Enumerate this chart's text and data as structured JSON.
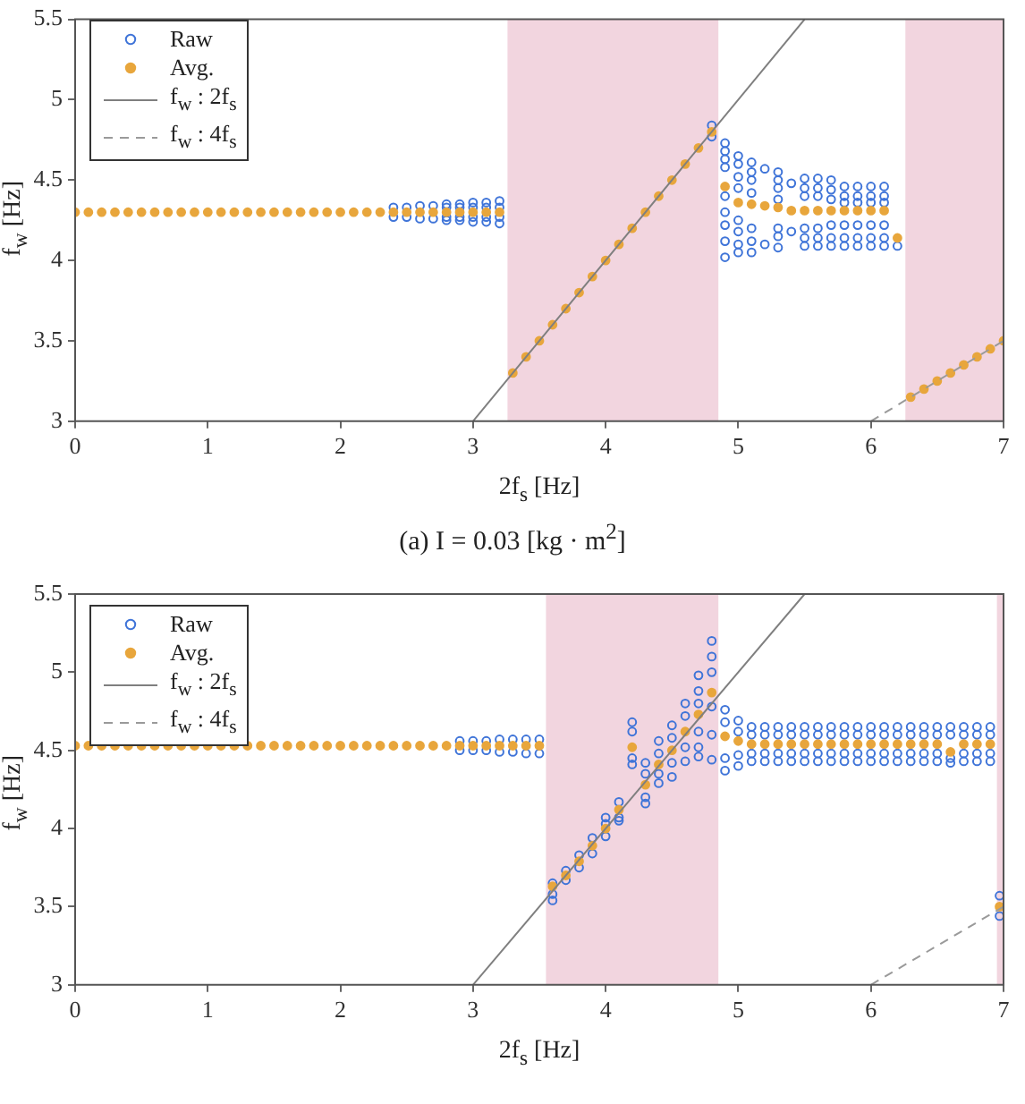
{
  "chart_data": [
    {
      "type": "scatter",
      "xlabel": "2f$_{s}$ [Hz]",
      "ylabel": "f$_{w}$ [Hz]",
      "xlim": [
        0,
        7
      ],
      "ylim": [
        3,
        5.5
      ],
      "xticks": [
        0,
        1,
        2,
        3,
        4,
        5,
        6,
        7
      ],
      "yticks": [
        3,
        3.5,
        4,
        4.5,
        5,
        5.5
      ],
      "legend": "top left",
      "annotations": [
        "(a) I = 0.03 [kg · m$^{2}$]"
      ],
      "bands": [
        {
          "axis": "x",
          "from": 3.26,
          "to": 4.85,
          "color": "#f2d5df"
        },
        {
          "axis": "x",
          "from": 6.26,
          "to": 7,
          "color": "#f2d5df"
        }
      ],
      "series": [
        {
          "name": "Raw",
          "type": "scatter",
          "marker": "circle",
          "color": "#3f74d8",
          "x": [
            2.4,
            2.4,
            2.5,
            2.5,
            2.6,
            2.6,
            2.7,
            2.7,
            2.8,
            2.8,
            2.8,
            2.8,
            2.9,
            2.9,
            2.9,
            2.9,
            3.0,
            3.0,
            3.0,
            3.0,
            3.1,
            3.1,
            3.1,
            3.1,
            3.2,
            3.2,
            3.2,
            3.2,
            4.8,
            4.8,
            4.9,
            4.9,
            4.9,
            4.9,
            4.9,
            4.9,
            4.9,
            4.9,
            4.9,
            5.0,
            5.0,
            5.0,
            5.0,
            5.0,
            5.0,
            5.0,
            5.0,
            5.1,
            5.1,
            5.1,
            5.1,
            5.1,
            5.1,
            5.1,
            5.2,
            5.2,
            5.3,
            5.3,
            5.3,
            5.3,
            5.3,
            5.3,
            5.3,
            5.4,
            5.4,
            5.5,
            5.5,
            5.5,
            5.5,
            5.5,
            5.5,
            5.6,
            5.6,
            5.6,
            5.6,
            5.6,
            5.6,
            5.7,
            5.7,
            5.7,
            5.7,
            5.7,
            5.7,
            5.8,
            5.8,
            5.8,
            5.8,
            5.8,
            5.8,
            5.9,
            5.9,
            5.9,
            5.9,
            5.9,
            5.9,
            6.0,
            6.0,
            6.0,
            6.0,
            6.0,
            6.0,
            6.1,
            6.1,
            6.1,
            6.1,
            6.1,
            6.1,
            6.2
          ],
          "values": [
            4.33,
            4.27,
            4.33,
            4.27,
            4.34,
            4.26,
            4.34,
            4.26,
            4.35,
            4.33,
            4.27,
            4.25,
            4.35,
            4.33,
            4.27,
            4.25,
            4.36,
            4.33,
            4.27,
            4.24,
            4.36,
            4.33,
            4.27,
            4.24,
            4.37,
            4.33,
            4.27,
            4.23,
            4.84,
            4.77,
            4.73,
            4.68,
            4.63,
            4.58,
            4.4,
            4.3,
            4.22,
            4.12,
            4.02,
            4.65,
            4.6,
            4.52,
            4.45,
            4.25,
            4.18,
            4.1,
            4.05,
            4.61,
            4.55,
            4.5,
            4.42,
            4.2,
            4.12,
            4.05,
            4.57,
            4.1,
            4.55,
            4.5,
            4.45,
            4.38,
            4.2,
            4.15,
            4.08,
            4.48,
            4.18,
            4.51,
            4.45,
            4.4,
            4.2,
            4.14,
            4.09,
            4.51,
            4.45,
            4.4,
            4.2,
            4.14,
            4.09,
            4.5,
            4.44,
            4.38,
            4.22,
            4.14,
            4.09,
            4.46,
            4.4,
            4.36,
            4.22,
            4.14,
            4.09,
            4.46,
            4.4,
            4.36,
            4.22,
            4.14,
            4.09,
            4.46,
            4.4,
            4.36,
            4.22,
            4.14,
            4.09,
            4.46,
            4.4,
            4.36,
            4.22,
            4.14,
            4.09,
            4.09
          ]
        },
        {
          "name": "Avg.",
          "type": "scatter",
          "marker": "circle",
          "color": "#e8a63c",
          "x": [
            0,
            0.1,
            0.2,
            0.3,
            0.4,
            0.5,
            0.6,
            0.7,
            0.8,
            0.9,
            1.0,
            1.1,
            1.2,
            1.3,
            1.4,
            1.5,
            1.6,
            1.7,
            1.8,
            1.9,
            2.0,
            2.1,
            2.2,
            2.3,
            2.4,
            2.5,
            2.6,
            2.7,
            2.8,
            2.9,
            3.0,
            3.1,
            3.2,
            3.3,
            3.4,
            3.5,
            3.6,
            3.7,
            3.8,
            3.9,
            4.0,
            4.1,
            4.2,
            4.3,
            4.4,
            4.5,
            4.6,
            4.7,
            4.8,
            4.9,
            5.0,
            5.1,
            5.2,
            5.3,
            5.4,
            5.5,
            5.6,
            5.7,
            5.8,
            5.9,
            6.0,
            6.1,
            6.2,
            6.3,
            6.4,
            6.5,
            6.6,
            6.7,
            6.8,
            6.9,
            7.0
          ],
          "values": [
            4.3,
            4.3,
            4.3,
            4.3,
            4.3,
            4.3,
            4.3,
            4.3,
            4.3,
            4.3,
            4.3,
            4.3,
            4.3,
            4.3,
            4.3,
            4.3,
            4.3,
            4.3,
            4.3,
            4.3,
            4.3,
            4.3,
            4.3,
            4.3,
            4.3,
            4.3,
            4.3,
            4.3,
            4.3,
            4.3,
            4.3,
            4.3,
            4.3,
            3.3,
            3.4,
            3.5,
            3.6,
            3.7,
            3.8,
            3.9,
            4.0,
            4.1,
            4.2,
            4.3,
            4.4,
            4.5,
            4.6,
            4.7,
            4.8,
            4.46,
            4.36,
            4.35,
            4.34,
            4.33,
            4.31,
            4.31,
            4.31,
            4.31,
            4.31,
            4.31,
            4.31,
            4.31,
            4.14,
            3.15,
            3.2,
            3.25,
            3.3,
            3.35,
            3.4,
            3.45,
            3.5
          ]
        },
        {
          "name": "f$_{w}$ : 2f$_{s}$",
          "type": "line",
          "marker": "none",
          "line_style": "solid",
          "color": "#7f7f7f",
          "x": [
            3,
            5.5
          ],
          "values": [
            3,
            5.5
          ]
        },
        {
          "name": "f$_{w}$ : 4f$_{s}$",
          "type": "line",
          "marker": "none",
          "line_style": "dashed",
          "color": "#9a9a9a",
          "x": [
            6,
            7
          ],
          "values": [
            3,
            3.5
          ]
        }
      ]
    },
    {
      "type": "scatter",
      "xlabel": "2f$_{s}$ [Hz]",
      "ylabel": "f$_{w}$ [Hz]",
      "xlim": [
        0,
        7
      ],
      "ylim": [
        3,
        5.5
      ],
      "xticks": [
        0,
        1,
        2,
        3,
        4,
        5,
        6,
        7
      ],
      "yticks": [
        3,
        3.5,
        4,
        4.5,
        5,
        5.5
      ],
      "legend": "top left",
      "bands": [
        {
          "axis": "x",
          "from": 3.55,
          "to": 4.85,
          "color": "#f2d5df"
        },
        {
          "axis": "x",
          "from": 6.95,
          "to": 7,
          "color": "#f2d5df"
        }
      ],
      "series": [
        {
          "name": "Raw",
          "type": "scatter",
          "marker": "circle",
          "color": "#3f74d8",
          "x": [
            2.9,
            2.9,
            3.0,
            3.0,
            3.1,
            3.1,
            3.2,
            3.2,
            3.3,
            3.3,
            3.4,
            3.4,
            3.5,
            3.5,
            3.6,
            3.6,
            3.6,
            3.7,
            3.7,
            3.8,
            3.8,
            3.9,
            3.9,
            4.0,
            4.0,
            4.0,
            4.1,
            4.1,
            4.1,
            4.2,
            4.2,
            4.2,
            4.2,
            4.3,
            4.3,
            4.3,
            4.3,
            4.4,
            4.4,
            4.4,
            4.4,
            4.5,
            4.5,
            4.5,
            4.5,
            4.6,
            4.6,
            4.6,
            4.6,
            4.7,
            4.7,
            4.7,
            4.7,
            4.7,
            4.7,
            4.8,
            4.8,
            4.8,
            4.8,
            4.8,
            4.8,
            4.9,
            4.9,
            4.9,
            4.9,
            5.0,
            5.0,
            5.0,
            5.0,
            5.1,
            5.1,
            5.1,
            5.1,
            5.2,
            5.2,
            5.2,
            5.2,
            5.3,
            5.3,
            5.3,
            5.3,
            5.4,
            5.4,
            5.4,
            5.4,
            5.5,
            5.5,
            5.5,
            5.5,
            5.6,
            5.6,
            5.6,
            5.6,
            5.7,
            5.7,
            5.7,
            5.7,
            5.8,
            5.8,
            5.8,
            5.8,
            5.9,
            5.9,
            5.9,
            5.9,
            6.0,
            6.0,
            6.0,
            6.0,
            6.1,
            6.1,
            6.1,
            6.1,
            6.2,
            6.2,
            6.2,
            6.2,
            6.3,
            6.3,
            6.3,
            6.3,
            6.4,
            6.4,
            6.4,
            6.4,
            6.5,
            6.5,
            6.5,
            6.5,
            6.6,
            6.6,
            6.6,
            6.6,
            6.7,
            6.7,
            6.7,
            6.7,
            6.8,
            6.8,
            6.8,
            6.8,
            6.9,
            6.9,
            6.9,
            6.9,
            6.97,
            6.97
          ],
          "values": [
            4.56,
            4.5,
            4.56,
            4.5,
            4.56,
            4.5,
            4.57,
            4.49,
            4.57,
            4.49,
            4.57,
            4.48,
            4.57,
            4.48,
            3.65,
            3.58,
            3.54,
            3.73,
            3.67,
            3.83,
            3.75,
            3.94,
            3.84,
            4.07,
            4.03,
            3.95,
            4.17,
            4.07,
            4.05,
            4.68,
            4.62,
            4.45,
            4.41,
            4.42,
            4.35,
            4.2,
            4.16,
            4.56,
            4.48,
            4.35,
            4.29,
            4.66,
            4.58,
            4.42,
            4.33,
            4.8,
            4.72,
            4.52,
            4.43,
            4.98,
            4.88,
            4.8,
            4.62,
            4.52,
            4.46,
            5.2,
            5.1,
            5.0,
            4.78,
            4.6,
            4.44,
            4.76,
            4.68,
            4.45,
            4.37,
            4.69,
            4.62,
            4.47,
            4.4,
            4.65,
            4.6,
            4.48,
            4.43,
            4.65,
            4.6,
            4.48,
            4.43,
            4.65,
            4.6,
            4.48,
            4.43,
            4.65,
            4.6,
            4.48,
            4.43,
            4.65,
            4.6,
            4.48,
            4.43,
            4.65,
            4.6,
            4.48,
            4.43,
            4.65,
            4.6,
            4.48,
            4.43,
            4.65,
            4.6,
            4.48,
            4.43,
            4.65,
            4.6,
            4.48,
            4.43,
            4.65,
            4.6,
            4.48,
            4.43,
            4.65,
            4.6,
            4.48,
            4.43,
            4.65,
            4.6,
            4.48,
            4.43,
            4.65,
            4.6,
            4.48,
            4.43,
            4.65,
            4.6,
            4.48,
            4.43,
            4.65,
            4.6,
            4.48,
            4.43,
            4.65,
            4.6,
            4.45,
            4.42,
            4.65,
            4.6,
            4.48,
            4.43,
            4.65,
            4.6,
            4.48,
            4.43,
            4.65,
            4.6,
            4.48,
            4.43,
            3.57,
            3.44
          ]
        },
        {
          "name": "Avg.",
          "type": "scatter",
          "marker": "circle",
          "color": "#e8a63c",
          "x": [
            0,
            0.1,
            0.2,
            0.3,
            0.4,
            0.5,
            0.6,
            0.7,
            0.8,
            0.9,
            1.0,
            1.1,
            1.2,
            1.3,
            1.4,
            1.5,
            1.6,
            1.7,
            1.8,
            1.9,
            2.0,
            2.1,
            2.2,
            2.3,
            2.4,
            2.5,
            2.6,
            2.7,
            2.8,
            2.9,
            3.0,
            3.1,
            3.2,
            3.3,
            3.4,
            3.5,
            3.6,
            3.7,
            3.8,
            3.9,
            4.0,
            4.1,
            4.2,
            4.3,
            4.4,
            4.5,
            4.6,
            4.7,
            4.8,
            4.9,
            5.0,
            5.1,
            5.2,
            5.3,
            5.4,
            5.5,
            5.6,
            5.7,
            5.8,
            5.9,
            6.0,
            6.1,
            6.2,
            6.3,
            6.4,
            6.5,
            6.6,
            6.7,
            6.8,
            6.9,
            6.97
          ],
          "values": [
            4.53,
            4.53,
            4.53,
            4.53,
            4.53,
            4.53,
            4.53,
            4.53,
            4.53,
            4.53,
            4.53,
            4.53,
            4.53,
            4.53,
            4.53,
            4.53,
            4.53,
            4.53,
            4.53,
            4.53,
            4.53,
            4.53,
            4.53,
            4.53,
            4.53,
            4.53,
            4.53,
            4.53,
            4.53,
            4.53,
            4.53,
            4.53,
            4.53,
            4.53,
            4.53,
            4.53,
            3.63,
            3.7,
            3.79,
            3.89,
            4.0,
            4.12,
            4.52,
            4.28,
            4.41,
            4.5,
            4.62,
            4.73,
            4.87,
            4.59,
            4.56,
            4.54,
            4.54,
            4.54,
            4.54,
            4.54,
            4.54,
            4.54,
            4.54,
            4.54,
            4.54,
            4.54,
            4.54,
            4.54,
            4.54,
            4.54,
            4.49,
            4.54,
            4.54,
            4.54,
            3.5
          ]
        },
        {
          "name": "f$_{w}$ : 2f$_{s}$",
          "type": "line",
          "marker": "none",
          "line_style": "solid",
          "color": "#7f7f7f",
          "x": [
            3,
            5.5
          ],
          "values": [
            3,
            5.5
          ]
        },
        {
          "name": "f$_{w}$ : 4f$_{s}$",
          "type": "line",
          "marker": "none",
          "line_style": "dashed",
          "color": "#9a9a9a",
          "x": [
            6,
            7
          ],
          "values": [
            3,
            3.5
          ]
        }
      ]
    }
  ]
}
